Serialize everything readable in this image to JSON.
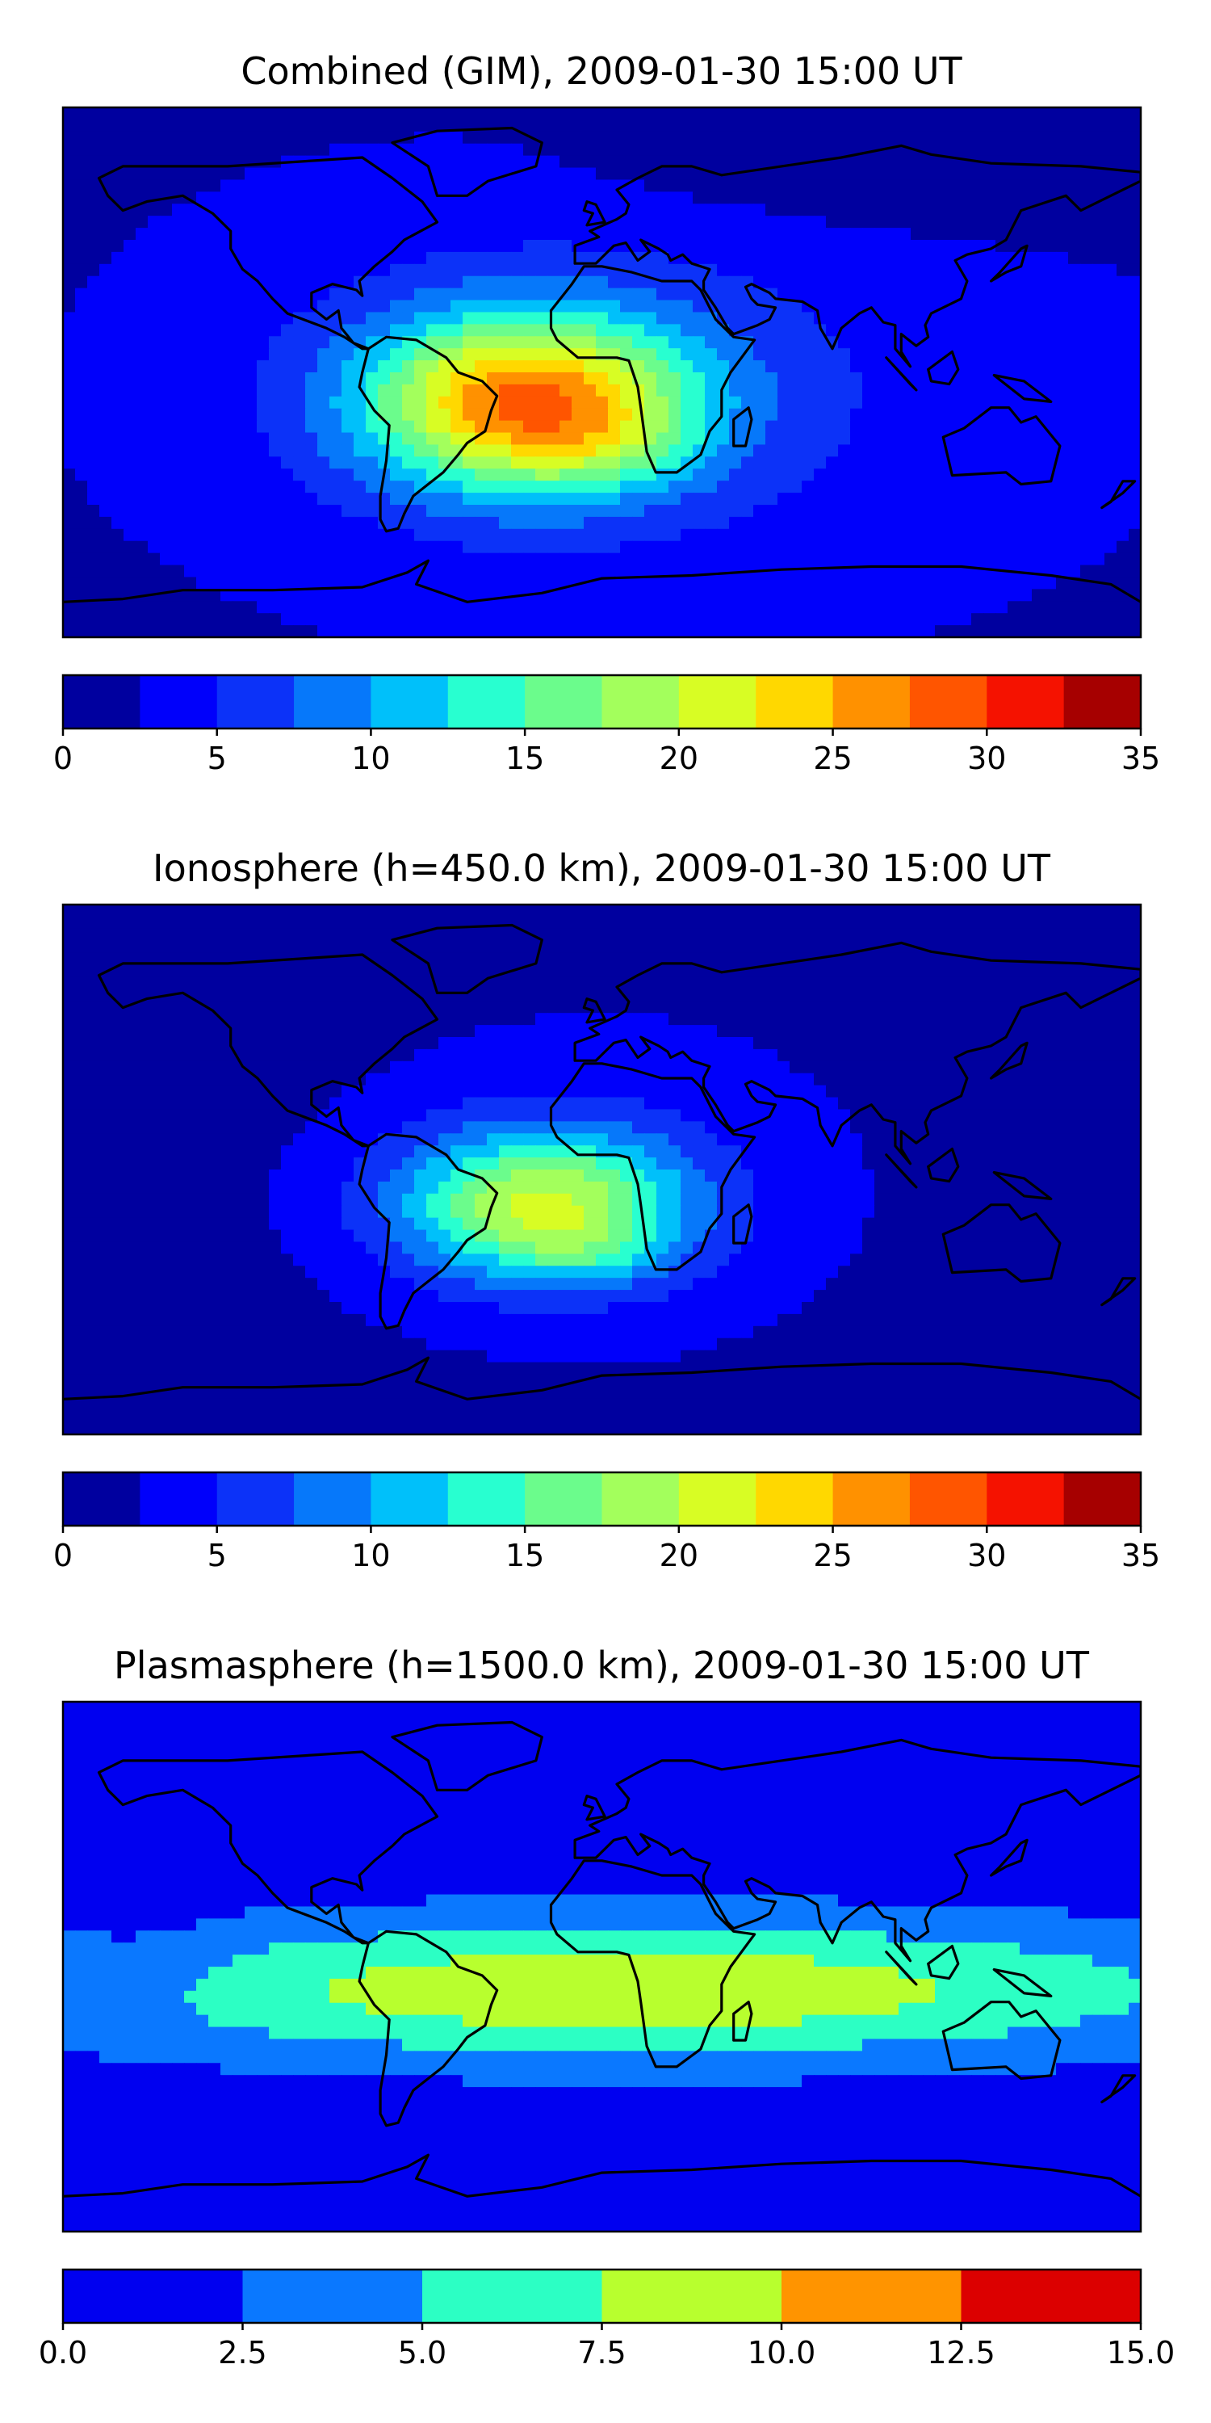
{
  "chart_data": [
    {
      "type": "heatmap",
      "title": "Combined (GIM), 2009-01-30 15:00 UT",
      "colorbar": {
        "ticks": [
          "0",
          "5",
          "10",
          "15",
          "20",
          "25",
          "30",
          "35"
        ],
        "range": [
          0,
          35
        ],
        "levels": [
          0,
          2.5,
          5,
          7.5,
          10,
          12.5,
          15,
          17.5,
          20,
          22.5,
          25,
          27.5,
          30,
          32.5,
          35
        ],
        "colors": [
          "#00009f",
          "#0000fb",
          "#0c32f8",
          "#0678fa",
          "#00c0fa",
          "#28ffd0",
          "#6bfc8c",
          "#a3ff5c",
          "#d8fd24",
          "#ffd800",
          "#ff9100",
          "#ff5500",
          "#f51200",
          "#a60000"
        ]
      },
      "regions": [
        {
          "name": "equatorial-anomaly",
          "lon": -25,
          "lat": -8,
          "peak": 27
        }
      ]
    },
    {
      "type": "heatmap",
      "title": "Ionosphere  (h=450.0 km), 2009-01-30 15:00 UT",
      "colorbar": {
        "ticks": [
          "0",
          "5",
          "10",
          "15",
          "20",
          "25",
          "30",
          "35"
        ],
        "range": [
          0,
          35
        ],
        "levels": [
          0,
          2.5,
          5,
          7.5,
          10,
          12.5,
          15,
          17.5,
          20,
          22.5,
          25,
          27.5,
          30,
          32.5,
          35
        ],
        "colors": [
          "#00009f",
          "#0000fb",
          "#0c32f8",
          "#0678fa",
          "#00c0fa",
          "#28ffd0",
          "#6bfc8c",
          "#a3ff5c",
          "#d8fd24",
          "#ffd800",
          "#ff9100",
          "#ff5500",
          "#f51200",
          "#a60000"
        ]
      },
      "regions": [
        {
          "name": "equatorial-anomaly",
          "lon": -20,
          "lat": -12,
          "peak": 21
        }
      ]
    },
    {
      "type": "heatmap",
      "title": "Plasmasphere (h=1500.0 km), 2009-01-30 15:00 UT",
      "colorbar": {
        "ticks": [
          "0.0",
          "2.5",
          "5.0",
          "7.5",
          "10.0",
          "12.5",
          "15.0"
        ],
        "range": [
          0,
          15
        ],
        "levels": [
          0,
          2.5,
          5,
          7.5,
          10,
          12.5,
          15
        ],
        "colors": [
          "#0000f0",
          "#0a78ff",
          "#2cffc4",
          "#b8ff2e",
          "#ff9400",
          "#dc0000"
        ]
      },
      "regions": [
        {
          "name": "equatorial-band",
          "lon": 20,
          "lat": -5,
          "peak": 8.5
        }
      ]
    }
  ]
}
